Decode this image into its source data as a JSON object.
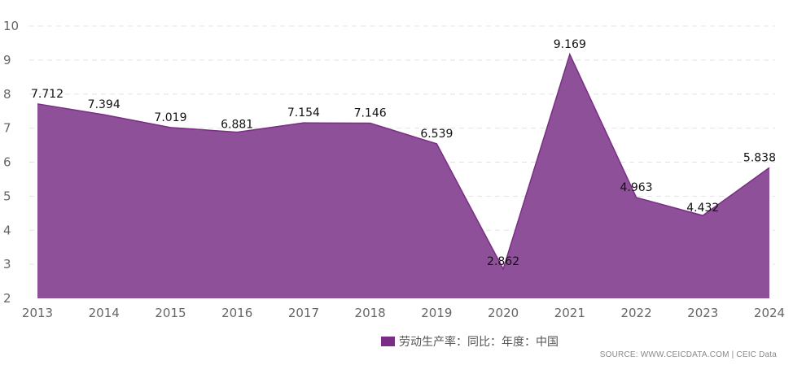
{
  "chart_data": {
    "type": "area",
    "categories": [
      "2013",
      "2014",
      "2015",
      "2016",
      "2017",
      "2018",
      "2019",
      "2020",
      "2021",
      "2022",
      "2023",
      "2024"
    ],
    "series": [
      {
        "name": "劳动生产率：同比：年度：中国",
        "values": [
          7.712,
          7.394,
          7.019,
          6.881,
          7.154,
          7.146,
          6.539,
          2.862,
          9.169,
          4.963,
          4.432,
          5.838
        ],
        "data_labels": [
          "7.712",
          "7.394",
          "7.019",
          "6.881",
          "7.154",
          "7.146",
          "6.539",
          "2.862",
          "9.169",
          "4.963",
          "4.432",
          "5.838"
        ]
      }
    ],
    "ylim": [
      2,
      10
    ],
    "yticks": [
      "2",
      "3",
      "4",
      "5",
      "6",
      "7",
      "8",
      "9",
      "10"
    ],
    "grid": true,
    "legend_position": "bottom-center",
    "colors": {
      "fill": "#8e5098",
      "line": "#7a2e84",
      "swatch": "#7b2d86",
      "grid": "#e3e3e3"
    }
  },
  "source": "SOURCE: WWW.CEICDATA.COM | CEIC Data"
}
